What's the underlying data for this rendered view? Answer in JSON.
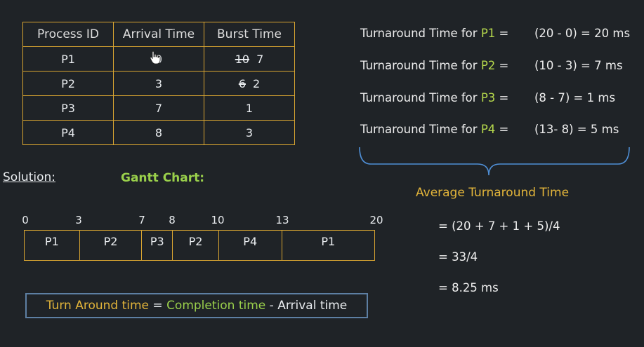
{
  "table": {
    "headers": [
      "Process ID",
      "Arrival Time",
      "Burst Time"
    ],
    "rows": [
      {
        "pid": "P1",
        "arrival": "0",
        "burst_old": "10",
        "burst_new": "7"
      },
      {
        "pid": "P2",
        "arrival": "3",
        "burst_old": "6",
        "burst_new": "2"
      },
      {
        "pid": "P3",
        "arrival": "7",
        "burst": "1"
      },
      {
        "pid": "P4",
        "arrival": "8",
        "burst": "3"
      }
    ]
  },
  "turnaround": {
    "prefix": "Turnaround Time for",
    "items": [
      {
        "pid": "P1",
        "expr": "(20 - 0) = 20 ms"
      },
      {
        "pid": "P2",
        "expr": "(10 - 3) =  7 ms"
      },
      {
        "pid": "P3",
        "expr": "(8 - 7) =  1 ms"
      },
      {
        "pid": "P4",
        "expr": "(13- 8) =  5 ms"
      }
    ]
  },
  "solution_label": "Solution:",
  "gantt_label": "Gantt Chart:",
  "gantt": {
    "ticks": [
      "0",
      "3",
      "7",
      "8",
      "10",
      "13",
      "20"
    ],
    "segments": [
      {
        "label": "P1",
        "start": 0,
        "end": 3
      },
      {
        "label": "P2",
        "start": 3,
        "end": 7
      },
      {
        "label": "P3",
        "start": 7,
        "end": 8
      },
      {
        "label": "P2",
        "start": 8,
        "end": 10
      },
      {
        "label": "P4",
        "start": 10,
        "end": 13
      },
      {
        "label": "P1",
        "start": 13,
        "end": 20
      }
    ]
  },
  "average": {
    "title": "Average Turnaround Time",
    "line1": "= (20 + 7 + 1 + 5)/4",
    "line2": "= 33/4",
    "line3": "= 8.25 ms"
  },
  "formula": {
    "lhs": "Turn Around time",
    "eq": " = ",
    "completion": "Completion time",
    "minus": " - ",
    "arrival": "Arrival time"
  },
  "colors": {
    "background": "#1f2327",
    "table_border": "#d9a531",
    "highlight_green": "#9ad04b",
    "highlight_yellow": "#e2b43a",
    "formula_border": "#5d7fa3"
  }
}
